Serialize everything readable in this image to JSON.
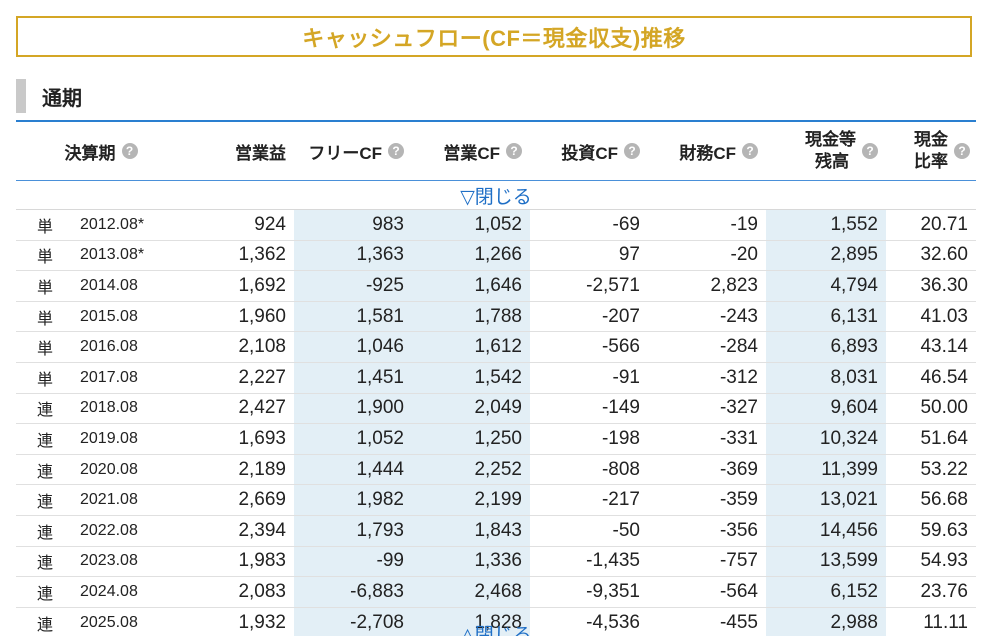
{
  "title": "キャッシュフロー(CF＝現金収支)推移",
  "section_label": "通期",
  "help_glyph": "?",
  "headers": {
    "period": "決算期",
    "operating_profit": "営業益",
    "free_cf": "フリーCF",
    "operating_cf": "営業CF",
    "investing_cf": "投資CF",
    "financing_cf": "財務CF",
    "cash_line1": "現金等",
    "cash_line2": "残高",
    "ratio_line1": "現金",
    "ratio_line2": "比率"
  },
  "toggle_close_label": "▽閉じる",
  "toggle_bottom_label": "△閉じる",
  "rows": [
    {
      "kind": "単",
      "period": "2012.08*",
      "op": "924",
      "fcf": "983",
      "ocf": "1,052",
      "icf": "-69",
      "fin": "-19",
      "cash": "1,552",
      "ratio": "20.71"
    },
    {
      "kind": "単",
      "period": "2013.08*",
      "op": "1,362",
      "fcf": "1,363",
      "ocf": "1,266",
      "icf": "97",
      "fin": "-20",
      "cash": "2,895",
      "ratio": "32.60"
    },
    {
      "kind": "単",
      "period": "2014.08",
      "op": "1,692",
      "fcf": "-925",
      "ocf": "1,646",
      "icf": "-2,571",
      "fin": "2,823",
      "cash": "4,794",
      "ratio": "36.30"
    },
    {
      "kind": "単",
      "period": "2015.08",
      "op": "1,960",
      "fcf": "1,581",
      "ocf": "1,788",
      "icf": "-207",
      "fin": "-243",
      "cash": "6,131",
      "ratio": "41.03"
    },
    {
      "kind": "単",
      "period": "2016.08",
      "op": "2,108",
      "fcf": "1,046",
      "ocf": "1,612",
      "icf": "-566",
      "fin": "-284",
      "cash": "6,893",
      "ratio": "43.14"
    },
    {
      "kind": "単",
      "period": "2017.08",
      "op": "2,227",
      "fcf": "1,451",
      "ocf": "1,542",
      "icf": "-91",
      "fin": "-312",
      "cash": "8,031",
      "ratio": "46.54"
    },
    {
      "kind": "連",
      "period": "2018.08",
      "op": "2,427",
      "fcf": "1,900",
      "ocf": "2,049",
      "icf": "-149",
      "fin": "-327",
      "cash": "9,604",
      "ratio": "50.00"
    },
    {
      "kind": "連",
      "period": "2019.08",
      "op": "1,693",
      "fcf": "1,052",
      "ocf": "1,250",
      "icf": "-198",
      "fin": "-331",
      "cash": "10,324",
      "ratio": "51.64"
    },
    {
      "kind": "連",
      "period": "2020.08",
      "op": "2,189",
      "fcf": "1,444",
      "ocf": "2,252",
      "icf": "-808",
      "fin": "-369",
      "cash": "11,399",
      "ratio": "53.22"
    },
    {
      "kind": "連",
      "period": "2021.08",
      "op": "2,669",
      "fcf": "1,982",
      "ocf": "2,199",
      "icf": "-217",
      "fin": "-359",
      "cash": "13,021",
      "ratio": "56.68"
    },
    {
      "kind": "連",
      "period": "2022.08",
      "op": "2,394",
      "fcf": "1,793",
      "ocf": "1,843",
      "icf": "-50",
      "fin": "-356",
      "cash": "14,456",
      "ratio": "59.63"
    },
    {
      "kind": "連",
      "period": "2023.08",
      "op": "1,983",
      "fcf": "-99",
      "ocf": "1,336",
      "icf": "-1,435",
      "fin": "-757",
      "cash": "13,599",
      "ratio": "54.93"
    },
    {
      "kind": "連",
      "period": "2024.08",
      "op": "2,083",
      "fcf": "-6,883",
      "ocf": "2,468",
      "icf": "-9,351",
      "fin": "-564",
      "cash": "6,152",
      "ratio": "23.76"
    },
    {
      "kind": "連",
      "period": "2025.08",
      "op": "1,932",
      "fcf": "-2,708",
      "ocf": "1,828",
      "icf": "-4,536",
      "fin": "-455",
      "cash": "2,988",
      "ratio": "11.11"
    }
  ],
  "colors": {
    "title_gold": "#d4a625",
    "link_blue": "#1f6fc6",
    "shade_blue": "#e3eff6",
    "rule_blue": "#2a7fd0"
  }
}
